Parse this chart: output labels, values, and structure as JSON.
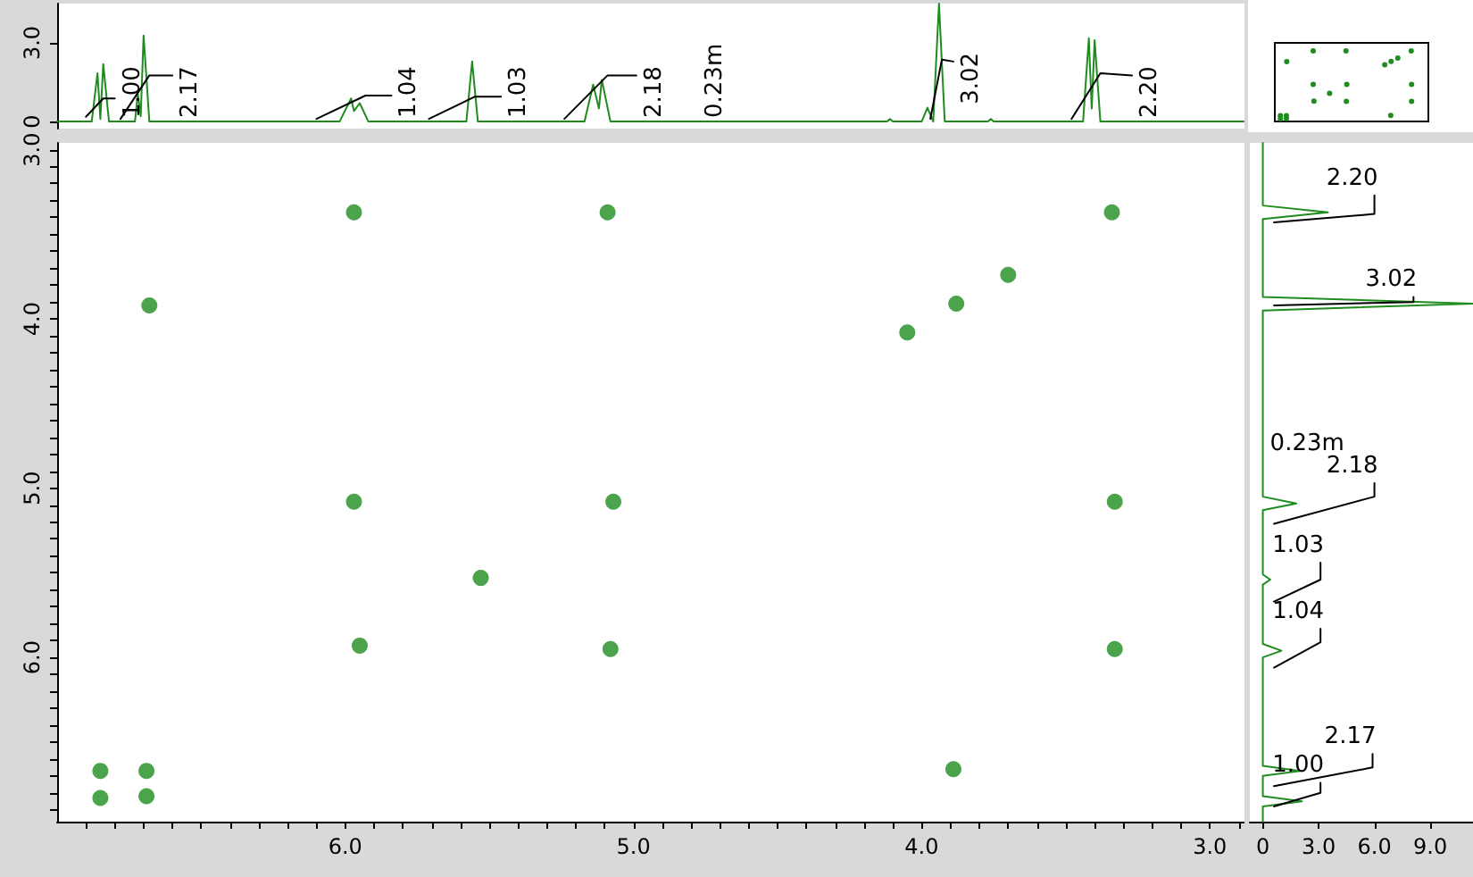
{
  "chart_data": [
    {
      "type": "line",
      "xlim": [
        7.0,
        2.88
      ],
      "ylim": [
        -0.27,
        4.5
      ],
      "yticks": [
        {
          "value": 0,
          "label": "0"
        },
        {
          "value": 3,
          "label": "3.0"
        }
      ],
      "tick_labels": "y",
      "grid": false,
      "marker": "none",
      "line_style": "solid",
      "series": [
        {
          "color": "#1e8c1e",
          "x": [
            7.0,
            6.88,
            6.86,
            6.85,
            6.84,
            6.82,
            6.73,
            6.72,
            6.71,
            6.7,
            6.68,
            6.02,
            5.98,
            5.97,
            5.95,
            5.92,
            5.58,
            5.56,
            5.54,
            5.17,
            5.14,
            5.12,
            5.11,
            5.08,
            4.12,
            4.11,
            4.1,
            4.0,
            3.98,
            3.96,
            3.94,
            3.92,
            3.77,
            3.76,
            3.75,
            3.44,
            3.42,
            3.41,
            3.4,
            3.38,
            2.88
          ],
          "values": [
            0,
            0,
            1.84,
            0.1,
            2.19,
            0,
            0,
            1.06,
            0.2,
            3.28,
            0,
            0,
            0.88,
            0.4,
            0.7,
            0,
            0,
            2.29,
            0,
            0,
            1.41,
            0.5,
            1.59,
            0,
            0,
            0.1,
            0,
            0,
            0.53,
            0,
            4.5,
            0,
            0,
            0.1,
            0,
            0,
            3.18,
            0.5,
            3.1,
            0,
            0
          ]
        },
        {
          "color": "#000000",
          "x": [
            6.9,
            6.84,
            6.8,
            6.79,
            6.78,
            6.68,
            6.6,
            6.59,
            6.1,
            5.93,
            5.84,
            5.83,
            5.71,
            5.55,
            5.46,
            5.45,
            5.24,
            5.09,
            4.99,
            4.98,
            3.97,
            3.93,
            3.89,
            3.88,
            3.48,
            3.38,
            3.27
          ],
          "values": [
            0.18,
            0.88,
            0.88,
            null,
            0.1,
            1.76,
            1.76,
            null,
            0.1,
            0.99,
            0.99,
            null,
            0.1,
            0.95,
            0.95,
            null,
            0.1,
            1.76,
            1.76,
            null,
            0.1,
            2.36,
            2.29,
            null,
            0.1,
            1.84,
            1.76
          ]
        }
      ],
      "annotations": [
        {
          "text": "0.23m",
          "x": 4.78,
          "y": 0
        },
        {
          "text": "1.00",
          "x": 6.8,
          "y": 0.88
        },
        {
          "text": "2.17",
          "x": 6.6,
          "y": 1.76
        },
        {
          "text": "1.04",
          "x": 5.84,
          "y": 0.99
        },
        {
          "text": "1.03",
          "x": 5.46,
          "y": 0.95
        },
        {
          "text": "2.18",
          "x": 4.99,
          "y": 1.76
        },
        {
          "text": "3.02",
          "x": 3.89,
          "y": 2.29
        },
        {
          "text": "2.20",
          "x": 3.27,
          "y": 1.76
        }
      ]
    },
    {
      "type": "scatter",
      "color": "#1e8c1e",
      "marker": "circle",
      "grid": false,
      "xlim": [
        7.0,
        2.88
      ],
      "ylim": [
        6.97,
        2.96
      ],
      "xticks": [
        {
          "value": 6.9,
          "label": null
        },
        {
          "value": 6.8,
          "label": null
        },
        {
          "value": 6.7,
          "label": null
        },
        {
          "value": 6.6,
          "label": null
        },
        {
          "value": 6.5,
          "label": null
        },
        {
          "value": 6.4,
          "label": null
        },
        {
          "value": 6.3,
          "label": null
        },
        {
          "value": 6.2,
          "label": null
        },
        {
          "value": 6.1,
          "label": null
        },
        {
          "value": 6,
          "label": "6.0"
        },
        {
          "value": 5.9,
          "label": null
        },
        {
          "value": 5.8,
          "label": null
        },
        {
          "value": 5.7,
          "label": null
        },
        {
          "value": 5.6,
          "label": null
        },
        {
          "value": 5.5,
          "label": null
        },
        {
          "value": 5.4,
          "label": null
        },
        {
          "value": 5.3,
          "label": null
        },
        {
          "value": 5.2,
          "label": null
        },
        {
          "value": 5.1,
          "label": null
        },
        {
          "value": 5,
          "label": "5.0"
        },
        {
          "value": 4.9,
          "label": null
        },
        {
          "value": 4.8,
          "label": null
        },
        {
          "value": 4.7,
          "label": null
        },
        {
          "value": 4.6,
          "label": null
        },
        {
          "value": 4.5,
          "label": null
        },
        {
          "value": 4.4,
          "label": null
        },
        {
          "value": 4.3,
          "label": null
        },
        {
          "value": 4.2,
          "label": null
        },
        {
          "value": 4.1,
          "label": null
        },
        {
          "value": 4,
          "label": "4.0"
        },
        {
          "value": 3.9,
          "label": null
        },
        {
          "value": 3.8,
          "label": null
        },
        {
          "value": 3.7,
          "label": null
        },
        {
          "value": 3.6,
          "label": null
        },
        {
          "value": 3.5,
          "label": null
        },
        {
          "value": 3.4,
          "label": null
        },
        {
          "value": 3.3,
          "label": null
        },
        {
          "value": 3.2,
          "label": null
        },
        {
          "value": 3.1,
          "label": null
        },
        {
          "value": 3,
          "label": "3.0"
        },
        {
          "value": 2.9,
          "label": null
        }
      ],
      "yticks": [
        {
          "value": 3,
          "label": "3.0"
        },
        {
          "value": 3.1,
          "label": null
        },
        {
          "value": 3.2,
          "label": null
        },
        {
          "value": 3.3,
          "label": null
        },
        {
          "value": 3.4,
          "label": null
        },
        {
          "value": 3.5,
          "label": null
        },
        {
          "value": 3.6,
          "label": null
        },
        {
          "value": 3.7,
          "label": null
        },
        {
          "value": 3.8,
          "label": null
        },
        {
          "value": 3.9,
          "label": null
        },
        {
          "value": 4,
          "label": "4.0"
        },
        {
          "value": 4.1,
          "label": null
        },
        {
          "value": 4.2,
          "label": null
        },
        {
          "value": 4.3,
          "label": null
        },
        {
          "value": 4.4,
          "label": null
        },
        {
          "value": 4.5,
          "label": null
        },
        {
          "value": 4.6,
          "label": null
        },
        {
          "value": 4.7,
          "label": null
        },
        {
          "value": 4.8,
          "label": null
        },
        {
          "value": 4.9,
          "label": null
        },
        {
          "value": 5,
          "label": "5.0"
        },
        {
          "value": 5.1,
          "label": null
        },
        {
          "value": 5.2,
          "label": null
        },
        {
          "value": 5.3,
          "label": null
        },
        {
          "value": 5.4,
          "label": null
        },
        {
          "value": 5.5,
          "label": null
        },
        {
          "value": 5.6,
          "label": null
        },
        {
          "value": 5.7,
          "label": null
        },
        {
          "value": 5.8,
          "label": null
        },
        {
          "value": 5.9,
          "label": null
        },
        {
          "value": 6,
          "label": "6.0"
        },
        {
          "value": 6.1,
          "label": null
        },
        {
          "value": 6.2,
          "label": null
        },
        {
          "value": 6.3,
          "label": null
        },
        {
          "value": 6.4,
          "label": null
        },
        {
          "value": 6.5,
          "label": null
        },
        {
          "value": 6.6,
          "label": null
        },
        {
          "value": 6.7,
          "label": null
        },
        {
          "value": 6.8,
          "label": null
        },
        {
          "value": 6.9,
          "label": null
        }
      ],
      "x": [
        5.97,
        5.09,
        3.34,
        3.7,
        3.88,
        4.05,
        6.68,
        5.97,
        5.07,
        3.33,
        5.53,
        5.95,
        5.08,
        3.33,
        6.85,
        6.69,
        6.85,
        6.69,
        3.89
      ],
      "values": [
        3.37,
        3.37,
        3.37,
        3.74,
        3.91,
        4.08,
        3.92,
        5.08,
        5.08,
        5.08,
        5.53,
        5.93,
        5.95,
        5.95,
        6.67,
        6.67,
        6.83,
        6.82,
        6.66
      ]
    },
    {
      "type": "line",
      "orientation": "horizontal",
      "xlim": [
        -0.7,
        11.3
      ],
      "ylim": [
        6.97,
        2.96
      ],
      "xticks": [
        {
          "value": 0,
          "label": "0"
        },
        {
          "value": 3,
          "label": "3.0"
        },
        {
          "value": 6,
          "label": "6.0"
        },
        {
          "value": 9,
          "label": "9.0"
        }
      ],
      "tick_labels": "x",
      "grid": false,
      "marker": "none",
      "line_style": "solid",
      "series": [
        {
          "color": "#1e8c1e",
          "x": [
            2.96,
            3.33,
            3.37,
            3.41,
            3.87,
            3.91,
            3.95,
            5.05,
            5.09,
            5.13,
            5.51,
            5.54,
            5.57,
            5.92,
            5.96,
            6.0,
            6.64,
            6.67,
            6.7,
            6.82,
            6.85,
            6.88,
            6.97
          ],
          "values": [
            0,
            0,
            3.5,
            0,
            0,
            11.3,
            0,
            0,
            1.8,
            0,
            0,
            0.4,
            0,
            0,
            1.0,
            0,
            0,
            2.0,
            0,
            0,
            2.1,
            0,
            0
          ]
        },
        {
          "color": "#000000",
          "x": [
            3.43,
            3.38,
            3.27,
            null,
            3.92,
            3.9,
            3.87,
            null,
            5.21,
            5.05,
            4.97,
            null,
            5.67,
            5.54,
            5.44,
            null,
            6.06,
            5.91,
            5.83,
            null,
            6.76,
            6.65,
            6.57,
            null,
            6.88,
            6.8,
            6.74
          ],
          "values": [
            0.6,
            6.0,
            6.0,
            null,
            0.6,
            8.1,
            8.1,
            null,
            0.6,
            6.0,
            6.0,
            null,
            0.6,
            3.1,
            3.1,
            null,
            0.6,
            3.1,
            3.1,
            null,
            0.6,
            5.9,
            5.9,
            null,
            0.6,
            3.1,
            3.1
          ]
        }
      ],
      "annotations": [
        {
          "text": "0.23m",
          "x": 0,
          "y": 4.74
        },
        {
          "text": "2.20",
          "x": 6.0,
          "y": 3.27
        },
        {
          "text": "3.02",
          "x": 8.1,
          "y": 3.87
        },
        {
          "text": "2.18",
          "x": 6.0,
          "y": 4.97
        },
        {
          "text": "1.03",
          "x": 3.1,
          "y": 5.44
        },
        {
          "text": "1.04",
          "x": 3.1,
          "y": 5.83
        },
        {
          "text": "2.17",
          "x": 5.9,
          "y": 6.57
        },
        {
          "text": "1.00",
          "x": 3.1,
          "y": 6.74
        }
      ]
    }
  ]
}
